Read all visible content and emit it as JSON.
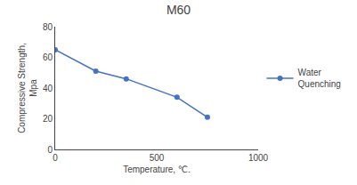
{
  "chart_data": {
    "type": "line",
    "title": "M60",
    "xlabel": "Temperature, ℃.",
    "ylabel": "Compressive Strength,\nMpa",
    "x": [
      0,
      200,
      350,
      600,
      750
    ],
    "series": [
      {
        "name": "Water\nQuenching",
        "color": "#4472C4",
        "marker": "o",
        "values": [
          65,
          51,
          46,
          34,
          21
        ]
      }
    ],
    "xlim": [
      0,
      1000
    ],
    "ylim": [
      0,
      80
    ],
    "xticks": [
      0,
      500,
      1000
    ],
    "yticks": [
      0,
      20,
      40,
      60,
      80
    ],
    "grid": false,
    "legend": "right"
  }
}
